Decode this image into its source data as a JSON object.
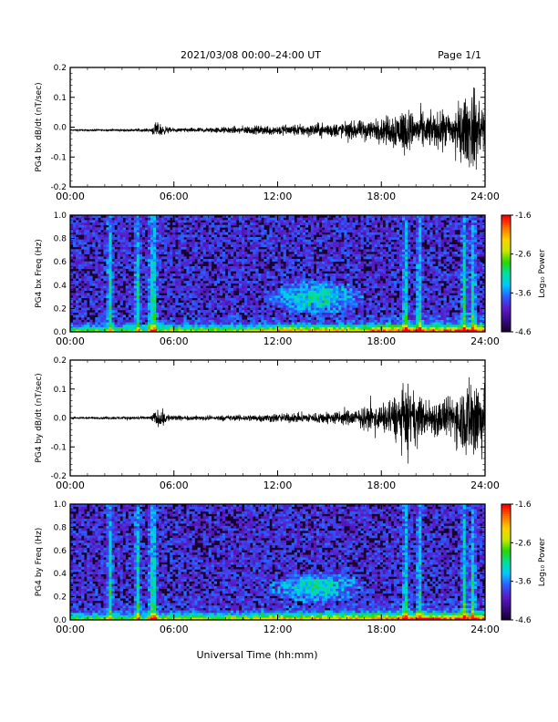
{
  "header": {
    "title": "2021/03/08  00:00–24:00 UT",
    "page": "Page 1/1"
  },
  "footer": {
    "xlabel": "Universal Time (hh:mm)"
  },
  "colors": {
    "trace": "#000000",
    "spectrogram_background": "#1a0030",
    "colormap": [
      "#1a0030",
      "#3a0a8a",
      "#5a1cc8",
      "#2a5cff",
      "#00c8ff",
      "#00e0a0",
      "#2ad400",
      "#c8e800",
      "#ffd000",
      "#ff7000",
      "#ff0000"
    ]
  },
  "chart_data": [
    {
      "type": "line",
      "name": "bx-waveform",
      "ylabel": "PG4 bx dB/dt (nT/sec)",
      "xlim": [
        0,
        24
      ],
      "ylim": [
        -0.2,
        0.2
      ],
      "yticks": [
        "-0.2",
        "-0.1",
        "0.0",
        "0.1",
        "0.2"
      ],
      "yticks_values": [
        -0.2,
        -0.1,
        0.0,
        0.1,
        0.2
      ],
      "xticks": [
        "00:00",
        "06:00",
        "12:00",
        "18:00",
        "24:00"
      ],
      "xticks_values": [
        0,
        6,
        12,
        18,
        24
      ],
      "baseline": -0.01,
      "amplitude_envelope": [
        [
          0,
          0.003
        ],
        [
          2,
          0.004
        ],
        [
          4.6,
          0.006
        ],
        [
          5,
          0.03
        ],
        [
          5.5,
          0.015
        ],
        [
          6,
          0.007
        ],
        [
          8,
          0.01
        ],
        [
          10,
          0.015
        ],
        [
          12,
          0.02
        ],
        [
          14,
          0.025
        ],
        [
          16,
          0.03
        ],
        [
          18,
          0.045
        ],
        [
          19.3,
          0.09
        ],
        [
          20,
          0.06
        ],
        [
          22,
          0.07
        ],
        [
          23.4,
          0.16
        ],
        [
          24,
          0.08
        ]
      ]
    },
    {
      "type": "heatmap",
      "name": "bx-spectrogram",
      "ylabel": "PG4 bx Freq (Hz)",
      "xlim": [
        0,
        24
      ],
      "ylim": [
        0,
        1.0
      ],
      "yticks": [
        "0.0",
        "0.2",
        "0.4",
        "0.6",
        "0.8",
        "1.0"
      ],
      "yticks_values": [
        0.0,
        0.2,
        0.4,
        0.6,
        0.8,
        1.0
      ],
      "xticks": [
        "00:00",
        "06:00",
        "12:00",
        "18:00",
        "24:00"
      ],
      "xticks_values": [
        0,
        6,
        12,
        18,
        24
      ],
      "colorbar": {
        "label": "Log₁₀ Power",
        "ticks": [
          "-1.6",
          "-2.6",
          "-3.6",
          "-4.6"
        ],
        "ticks_values": [
          -1.6,
          -2.6,
          -3.6,
          -4.6
        ],
        "range": [
          -4.6,
          -1.6
        ]
      },
      "vertical_stripes_hours": [
        2.3,
        3.9,
        4.7,
        4.85,
        19.4,
        20.2,
        22.8,
        23.3
      ],
      "enhanced_region": {
        "hours": [
          11.5,
          17.0
        ],
        "freq": [
          0.15,
          0.45
        ]
      }
    },
    {
      "type": "line",
      "name": "by-waveform",
      "ylabel": "PG4 by dB/dt (nT/sec)",
      "xlim": [
        0,
        24
      ],
      "ylim": [
        -0.2,
        0.2
      ],
      "yticks": [
        "-0.2",
        "-0.1",
        "0.0",
        "0.1",
        "0.2"
      ],
      "yticks_values": [
        -0.2,
        -0.1,
        0.0,
        0.1,
        0.2
      ],
      "xticks": [
        "00:00",
        "06:00",
        "12:00",
        "18:00",
        "24:00"
      ],
      "xticks_values": [
        0,
        6,
        12,
        18,
        24
      ],
      "baseline": 0.0,
      "amplitude_envelope": [
        [
          0,
          0.003
        ],
        [
          2,
          0.005
        ],
        [
          4.6,
          0.007
        ],
        [
          5.2,
          0.04
        ],
        [
          5.7,
          0.015
        ],
        [
          6.5,
          0.008
        ],
        [
          10,
          0.012
        ],
        [
          12,
          0.018
        ],
        [
          14,
          0.02
        ],
        [
          16,
          0.03
        ],
        [
          18,
          0.05
        ],
        [
          19.4,
          0.12
        ],
        [
          20.5,
          0.07
        ],
        [
          22,
          0.08
        ],
        [
          23.5,
          0.19
        ],
        [
          24,
          0.1
        ]
      ]
    },
    {
      "type": "heatmap",
      "name": "by-spectrogram",
      "ylabel": "PG4 by Freq (Hz)",
      "xlim": [
        0,
        24
      ],
      "ylim": [
        0,
        1.0
      ],
      "yticks": [
        "0.0",
        "0.2",
        "0.4",
        "0.6",
        "0.8",
        "1.0"
      ],
      "yticks_values": [
        0.0,
        0.2,
        0.4,
        0.6,
        0.8,
        1.0
      ],
      "xticks": [
        "00:00",
        "06:00",
        "12:00",
        "18:00",
        "24:00"
      ],
      "xticks_values": [
        0,
        6,
        12,
        18,
        24
      ],
      "colorbar": {
        "label": "Log₁₀ Power",
        "ticks": [
          "-1.6",
          "-2.6",
          "-3.6",
          "-4.6"
        ],
        "ticks_values": [
          -1.6,
          -2.6,
          -3.6,
          -4.6
        ],
        "range": [
          -4.6,
          -1.6
        ]
      },
      "vertical_stripes_hours": [
        2.3,
        3.9,
        4.7,
        4.85,
        19.4,
        20.2,
        22.8,
        23.3
      ],
      "enhanced_region": {
        "hours": [
          11.5,
          17.0
        ],
        "freq": [
          0.15,
          0.42
        ]
      }
    }
  ]
}
